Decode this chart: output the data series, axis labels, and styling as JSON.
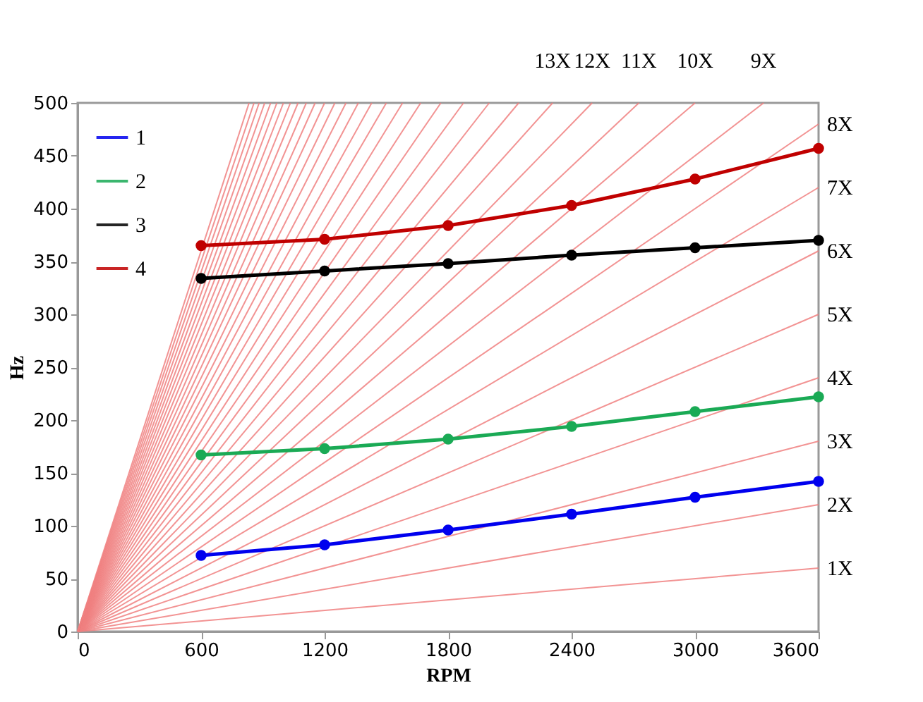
{
  "chart_data": {
    "type": "line",
    "xlabel": "RPM",
    "ylabel": "Hz",
    "xlim": [
      0,
      3600
    ],
    "ylim": [
      0,
      500
    ],
    "xticks": [
      0,
      600,
      1200,
      1800,
      2400,
      3000,
      3600
    ],
    "yticks": [
      0,
      50,
      100,
      150,
      200,
      250,
      300,
      350,
      400,
      450,
      500
    ],
    "grid": false,
    "legend": "top left",
    "marker": "circle",
    "series": [
      {
        "name": "1",
        "color": "#0000ee",
        "x": [
          600,
          1200,
          1800,
          2400,
          3000,
          3600
        ],
        "values": [
          72,
          82,
          96,
          111,
          127,
          142
        ]
      },
      {
        "name": "2",
        "color": "#1aaa55",
        "x": [
          600,
          1200,
          1800,
          2400,
          3000,
          3600
        ],
        "values": [
          167,
          173,
          182,
          194,
          208,
          222
        ]
      },
      {
        "name": "3",
        "color": "#000000",
        "x": [
          600,
          1200,
          1800,
          2400,
          3000,
          3600
        ],
        "values": [
          334,
          341,
          348,
          356,
          363,
          370
        ]
      },
      {
        "name": "4",
        "color": "#c00000",
        "x": [
          600,
          1200,
          1800,
          2400,
          3000,
          3600
        ],
        "values": [
          365,
          371,
          384,
          403,
          428,
          457
        ]
      },
      {
        "color": "#f08080",
        "marker": "none",
        "x": [
          0,
          3600
        ],
        "values": [
          0,
          60
        ]
      },
      {
        "color": "#f08080",
        "marker": "none",
        "x": [
          0,
          3600
        ],
        "values": [
          0,
          120
        ]
      },
      {
        "color": "#f08080",
        "marker": "none",
        "x": [
          0,
          3600
        ],
        "values": [
          0,
          180
        ]
      },
      {
        "color": "#f08080",
        "marker": "none",
        "x": [
          0,
          3600
        ],
        "values": [
          0,
          240
        ]
      },
      {
        "color": "#f08080",
        "marker": "none",
        "x": [
          0,
          3600
        ],
        "values": [
          0,
          300
        ]
      },
      {
        "color": "#f08080",
        "marker": "none",
        "x": [
          0,
          3600
        ],
        "values": [
          0,
          360
        ]
      },
      {
        "color": "#f08080",
        "marker": "none",
        "x": [
          0,
          3600
        ],
        "values": [
          0,
          420
        ]
      },
      {
        "color": "#f08080",
        "marker": "none",
        "x": [
          0,
          3600
        ],
        "values": [
          0,
          480
        ]
      },
      {
        "color": "#f08080",
        "marker": "none",
        "x": [
          0,
          3333
        ],
        "values": [
          0,
          500
        ]
      },
      {
        "color": "#f08080",
        "marker": "none",
        "x": [
          0,
          3000
        ],
        "values": [
          0,
          500
        ]
      },
      {
        "color": "#f08080",
        "marker": "none",
        "x": [
          0,
          2727
        ],
        "values": [
          0,
          500
        ]
      },
      {
        "color": "#f08080",
        "marker": "none",
        "x": [
          0,
          2500
        ],
        "values": [
          0,
          500
        ]
      },
      {
        "color": "#f08080",
        "marker": "none",
        "x": [
          0,
          2308
        ],
        "values": [
          0,
          500
        ]
      },
      {
        "color": "#f08080",
        "marker": "none",
        "x": [
          0,
          2143
        ],
        "values": [
          0,
          500
        ]
      },
      {
        "color": "#f08080",
        "marker": "none",
        "x": [
          0,
          2000
        ],
        "values": [
          0,
          500
        ]
      },
      {
        "color": "#f08080",
        "marker": "none",
        "x": [
          0,
          1875
        ],
        "values": [
          0,
          500
        ]
      },
      {
        "color": "#f08080",
        "marker": "none",
        "x": [
          0,
          1765
        ],
        "values": [
          0,
          500
        ]
      },
      {
        "color": "#f08080",
        "marker": "none",
        "x": [
          0,
          1667
        ],
        "values": [
          0,
          500
        ]
      },
      {
        "color": "#f08080",
        "marker": "none",
        "x": [
          0,
          1579
        ],
        "values": [
          0,
          500
        ]
      },
      {
        "color": "#f08080",
        "marker": "none",
        "x": [
          0,
          1500
        ],
        "values": [
          0,
          500
        ]
      },
      {
        "color": "#f08080",
        "marker": "none",
        "x": [
          0,
          1429
        ],
        "values": [
          0,
          500
        ]
      },
      {
        "color": "#f08080",
        "marker": "none",
        "x": [
          0,
          1364
        ],
        "values": [
          0,
          500
        ]
      },
      {
        "color": "#f08080",
        "marker": "none",
        "x": [
          0,
          1304
        ],
        "values": [
          0,
          500
        ]
      },
      {
        "color": "#f08080",
        "marker": "none",
        "x": [
          0,
          1250
        ],
        "values": [
          0,
          500
        ]
      },
      {
        "color": "#f08080",
        "marker": "none",
        "x": [
          0,
          1200
        ],
        "values": [
          0,
          500
        ]
      },
      {
        "color": "#f08080",
        "marker": "none",
        "x": [
          0,
          1154
        ],
        "values": [
          0,
          500
        ]
      },
      {
        "color": "#f08080",
        "marker": "none",
        "x": [
          0,
          1111
        ],
        "values": [
          0,
          500
        ]
      },
      {
        "color": "#f08080",
        "marker": "none",
        "x": [
          0,
          1071
        ],
        "values": [
          0,
          500
        ]
      },
      {
        "color": "#f08080",
        "marker": "none",
        "x": [
          0,
          1034
        ],
        "values": [
          0,
          500
        ]
      },
      {
        "color": "#f08080",
        "marker": "none",
        "x": [
          0,
          1000
        ],
        "values": [
          0,
          500
        ]
      },
      {
        "color": "#f08080",
        "marker": "none",
        "x": [
          0,
          968
        ],
        "values": [
          0,
          500
        ]
      },
      {
        "color": "#f08080",
        "marker": "none",
        "x": [
          0,
          938
        ],
        "values": [
          0,
          500
        ]
      },
      {
        "color": "#f08080",
        "marker": "none",
        "x": [
          0,
          909
        ],
        "values": [
          0,
          500
        ]
      },
      {
        "color": "#f08080",
        "marker": "none",
        "x": [
          0,
          882
        ],
        "values": [
          0,
          500
        ]
      },
      {
        "color": "#f08080",
        "marker": "none",
        "x": [
          0,
          857
        ],
        "values": [
          0,
          500
        ]
      },
      {
        "color": "#f08080",
        "marker": "none",
        "x": [
          0,
          833
        ],
        "values": [
          0,
          500
        ]
      }
    ],
    "annotations": [
      {
        "text": "13X",
        "x": 2308,
        "y": 500
      },
      {
        "text": "12X",
        "x": 2500,
        "y": 500
      },
      {
        "text": "11X",
        "x": 2727,
        "y": 500
      },
      {
        "text": "10X",
        "x": 3000,
        "y": 500
      },
      {
        "text": "9X",
        "x": 3333,
        "y": 500
      },
      {
        "text": "8X",
        "x": 3600,
        "y": 480
      },
      {
        "text": "7X",
        "x": 3600,
        "y": 420
      },
      {
        "text": "6X",
        "x": 3600,
        "y": 360
      },
      {
        "text": "5X",
        "x": 3600,
        "y": 300
      },
      {
        "text": "4X",
        "x": 3600,
        "y": 240
      },
      {
        "text": "3X",
        "x": 3600,
        "y": 180
      },
      {
        "text": "2X",
        "x": 3600,
        "y": 120
      },
      {
        "text": "1X",
        "x": 3600,
        "y": 60
      }
    ]
  }
}
